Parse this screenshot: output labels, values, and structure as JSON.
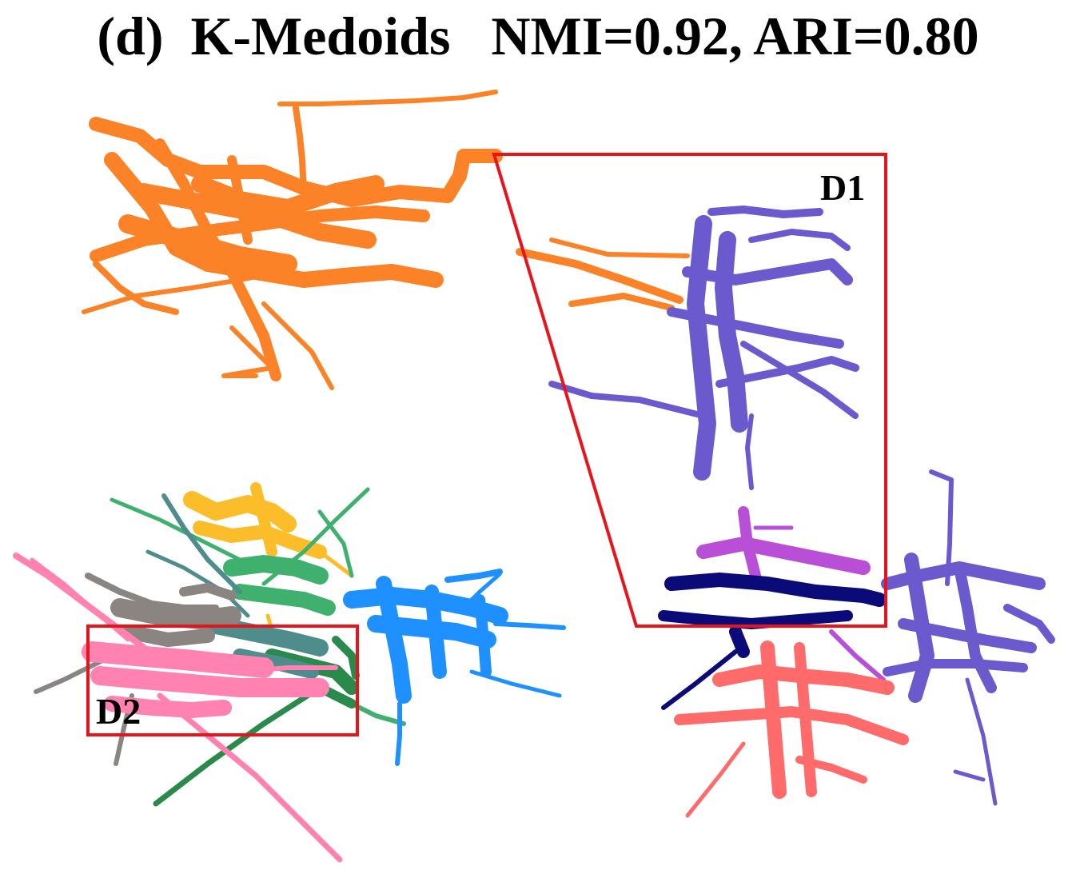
{
  "figure": {
    "title": "(d)  K-Medoids   NMI=0.92, ARI=0.80",
    "regions": [
      {
        "id": "D1",
        "label": "D1",
        "border_color": "#e8141b"
      },
      {
        "id": "D2",
        "label": "D2",
        "border_color": "#e8141b"
      }
    ],
    "clusters": [
      {
        "id": "orange",
        "color": "#fb8226"
      },
      {
        "id": "violet",
        "color": "#6a5acd"
      },
      {
        "id": "magenta",
        "color": "#b84fd6"
      },
      {
        "id": "navy",
        "color": "#0a0a78"
      },
      {
        "id": "salmon",
        "color": "#ff6a6a"
      },
      {
        "id": "gold",
        "color": "#fbbe2a"
      },
      {
        "id": "green",
        "color": "#3fb06e"
      },
      {
        "id": "darkgreen",
        "color": "#2a8a4c"
      },
      {
        "id": "teal",
        "color": "#4f8c8c"
      },
      {
        "id": "blue",
        "color": "#1e90ff"
      },
      {
        "id": "gray",
        "color": "#8a8580"
      },
      {
        "id": "pink",
        "color": "#ff82b0"
      }
    ]
  }
}
